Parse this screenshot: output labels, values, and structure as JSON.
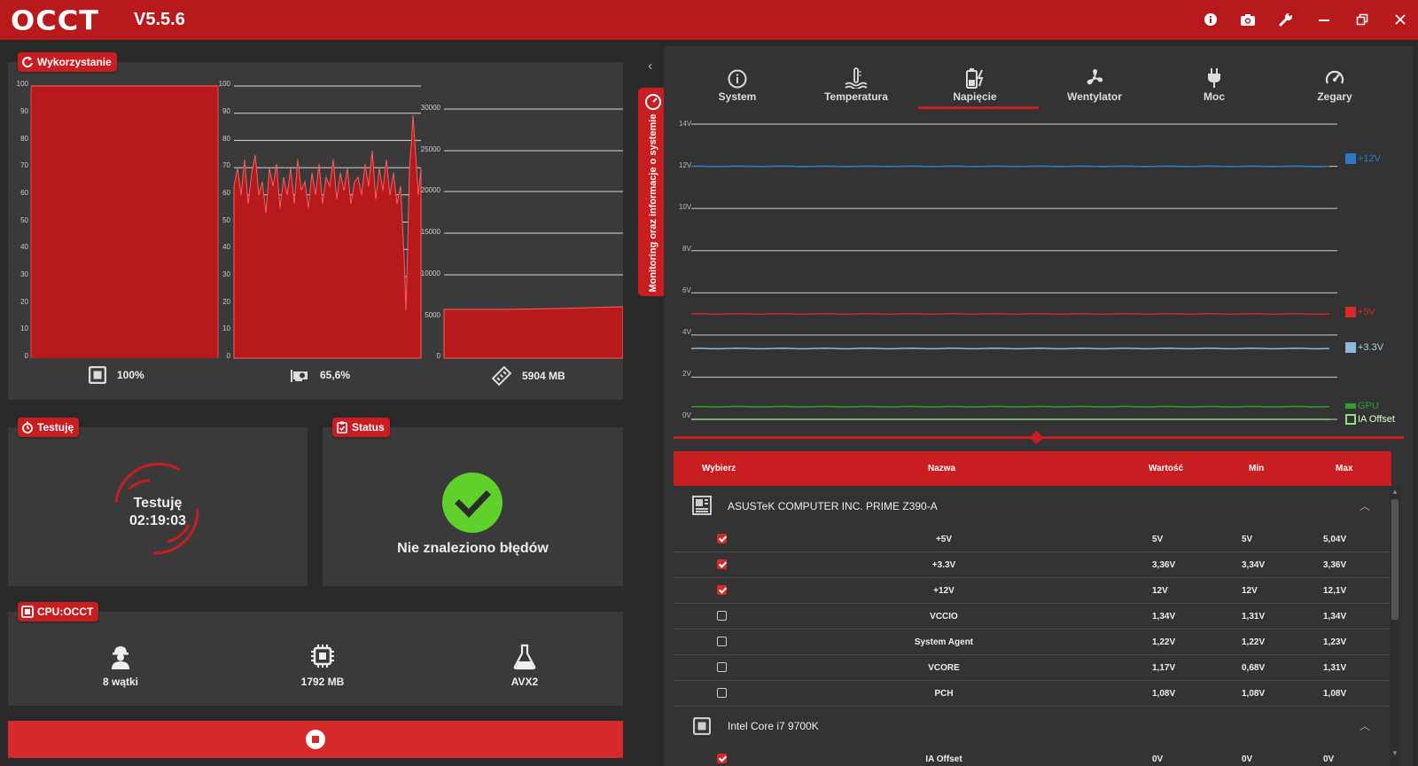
{
  "app": {
    "logo": "OCCT",
    "version": "V5.5.6"
  },
  "titlebar_icons": [
    "info-icon",
    "camera-icon",
    "wrench-icon",
    "minimize-icon",
    "restore-icon",
    "close-icon"
  ],
  "usage": {
    "tag": "Wykorzystanie",
    "cpu_label": "100%",
    "gpu_label": "65,6%",
    "ram_label": "5904 MB",
    "cpu_chart": {
      "type": "area",
      "ylim": [
        0,
        100
      ],
      "yticks": [
        "100",
        "90",
        "80",
        "70",
        "60",
        "50",
        "40",
        "30",
        "20",
        "10",
        "0"
      ],
      "value": 100
    },
    "gpu_chart": {
      "type": "area",
      "ylim": [
        0,
        100
      ],
      "yticks": [
        "100",
        "90",
        "80",
        "70",
        "60",
        "50",
        "40",
        "30",
        "20",
        "10",
        "0"
      ]
    },
    "ram_chart": {
      "type": "area",
      "ylim": [
        0,
        30000
      ],
      "yticks": [
        "30000",
        "25000",
        "20000",
        "15000",
        "10000",
        "5000",
        "0"
      ],
      "value": 5904
    }
  },
  "testing": {
    "tag": "Testuję",
    "label": "Testuję",
    "time": "02:19:03"
  },
  "status": {
    "tag": "Status",
    "message": "Nie znaleziono błędów"
  },
  "cpu_test": {
    "tag": "CPU:OCCT",
    "threads": "8 wątki",
    "memory": "1792 MB",
    "instruction": "AVX2"
  },
  "sidebar_handle": "Monitoring oraz informacje o systemie",
  "tabs": [
    {
      "label": "System",
      "icon": "info-icon"
    },
    {
      "label": "Temperatura",
      "icon": "thermometer-icon"
    },
    {
      "label": "Napięcie",
      "icon": "battery-icon",
      "active": true
    },
    {
      "label": "Wentylator",
      "icon": "fan-icon"
    },
    {
      "label": "Moc",
      "icon": "plug-icon"
    },
    {
      "label": "Zegary",
      "icon": "gauge-icon"
    }
  ],
  "chart_data": {
    "type": "line",
    "ylim": [
      0,
      14
    ],
    "yticks": [
      "14V",
      "12V",
      "10V",
      "8V",
      "6V",
      "4V",
      "2V",
      "0V"
    ],
    "series": [
      {
        "name": "+12V",
        "value": 12,
        "color": "#2b78c2"
      },
      {
        "name": "+5V",
        "value": 5,
        "color": "#d42a2a"
      },
      {
        "name": "+3.3V",
        "value": 3.36,
        "color": "#8fb9d6"
      },
      {
        "name": "GPU",
        "value": 0.6,
        "color": "#2f9e2f"
      },
      {
        "name": "IA Offset",
        "value": 0,
        "color": "#8ee07a"
      }
    ]
  },
  "table": {
    "headers": {
      "select": "Wybierz",
      "name": "Nazwa",
      "value": "Wartość",
      "min": "Min",
      "max": "Max"
    },
    "group1": "ASUSTeK COMPUTER INC. PRIME Z390-A",
    "rows": [
      {
        "checked": true,
        "name": "+5V",
        "value": "5V",
        "min": "5V",
        "max": "5,04V"
      },
      {
        "checked": true,
        "name": "+3.3V",
        "value": "3,36V",
        "min": "3,34V",
        "max": "3,36V"
      },
      {
        "checked": true,
        "name": "+12V",
        "value": "12V",
        "min": "12V",
        "max": "12,1V"
      },
      {
        "checked": false,
        "name": "VCCIO",
        "value": "1,34V",
        "min": "1,31V",
        "max": "1,34V"
      },
      {
        "checked": false,
        "name": "System Agent",
        "value": "1,22V",
        "min": "1,22V",
        "max": "1,23V"
      },
      {
        "checked": false,
        "name": "VCORE",
        "value": "1,17V",
        "min": "0,68V",
        "max": "1,31V"
      },
      {
        "checked": false,
        "name": "PCH",
        "value": "1,08V",
        "min": "1,08V",
        "max": "1,08V"
      }
    ],
    "group2": "Intel Core i7 9700K",
    "rows2": [
      {
        "checked": true,
        "name": "IA Offset",
        "value": "0V",
        "min": "0V",
        "max": "0V"
      }
    ]
  },
  "colors": {
    "accent": "#c81e21",
    "panel": "#3a3a3a",
    "ok": "#5fd12a"
  }
}
